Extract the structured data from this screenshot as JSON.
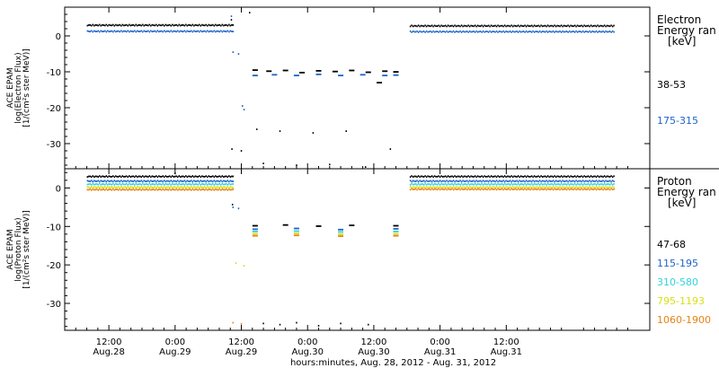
{
  "chart_data": [
    {
      "type": "scatter",
      "ylabel": [
        "ACE EPAM",
        "log(Electron Flux)",
        "[1/(cm²s ster MeV)]"
      ],
      "ylim": [
        -37,
        8
      ],
      "yticks": [
        0,
        -10,
        -20,
        -30
      ],
      "legend": {
        "title": [
          "Electron",
          "Energy ran",
          "[keV]"
        ],
        "placement": "right"
      },
      "series": [
        {
          "name": "38-53",
          "color": "#000000",
          "segments": [
            {
              "x": [
                -16,
                10.5
              ],
              "y": 3.0
            },
            {
              "x": [
                42.5,
                79.5
              ],
              "y": 2.8
            }
          ],
          "points": [
            {
              "x": 10.2,
              "y": 4.5
            },
            {
              "x": 13.5,
              "y": 6.5
            },
            {
              "x": 14.5,
              "y": -9.5
            },
            {
              "x": 17,
              "y": -9.8
            },
            {
              "x": 20,
              "y": -9.6
            },
            {
              "x": 23,
              "y": -10.2
            },
            {
              "x": 26,
              "y": -9.7
            },
            {
              "x": 29,
              "y": -9.9
            },
            {
              "x": 32,
              "y": -9.6
            },
            {
              "x": 35,
              "y": -10.1
            },
            {
              "x": 38,
              "y": -9.8
            },
            {
              "x": 40,
              "y": -10.0
            },
            {
              "x": 10.3,
              "y": -31.5
            },
            {
              "x": 12.0,
              "y": -32.0
            },
            {
              "x": 14.8,
              "y": -26.0
            },
            {
              "x": 16.0,
              "y": -35.5
            },
            {
              "x": 19.0,
              "y": -26.5
            },
            {
              "x": 22.0,
              "y": -36.0
            },
            {
              "x": 25.0,
              "y": -27.0
            },
            {
              "x": 28.0,
              "y": -35.8
            },
            {
              "x": 31.0,
              "y": -26.5
            },
            {
              "x": 34.5,
              "y": -36.5
            },
            {
              "x": 37.0,
              "y": -13.0
            },
            {
              "x": 39.0,
              "y": -31.5
            }
          ]
        },
        {
          "name": "175-315",
          "color": "#1e64c8",
          "segments": [
            {
              "x": [
                -16,
                10.5
              ],
              "y": 1.3
            },
            {
              "x": [
                42.5,
                79.5
              ],
              "y": 1.2
            }
          ],
          "points": [
            {
              "x": 10.2,
              "y": 5.5
            },
            {
              "x": 10.5,
              "y": -4.5
            },
            {
              "x": 11.5,
              "y": -5.0
            },
            {
              "x": 12.2,
              "y": -19.5
            },
            {
              "x": 12.5,
              "y": -20.5
            },
            {
              "x": 14.5,
              "y": -11.0
            },
            {
              "x": 18,
              "y": -10.8
            },
            {
              "x": 22,
              "y": -11.0
            },
            {
              "x": 26,
              "y": -10.7
            },
            {
              "x": 30,
              "y": -11.0
            },
            {
              "x": 34,
              "y": -10.8
            },
            {
              "x": 38,
              "y": -11.0
            },
            {
              "x": 40,
              "y": -10.9
            }
          ]
        }
      ]
    },
    {
      "type": "scatter",
      "ylabel": [
        "ACE EPAM",
        "log(Proton Flux)",
        "[1/(cm²s ster MeV)]"
      ],
      "ylim": [
        -37,
        5
      ],
      "yticks": [
        0,
        -10,
        -20,
        -30
      ],
      "legend": {
        "title": [
          "Proton",
          "Energy ran",
          "[keV]"
        ],
        "placement": "right"
      },
      "series": [
        {
          "name": "47-68",
          "color": "#000000",
          "segments": [
            {
              "x": [
                -16,
                10.5
              ],
              "y": 3.0
            },
            {
              "x": [
                42.5,
                79.5
              ],
              "y": 3.0
            }
          ],
          "points": [
            {
              "x": 0,
              "y": 3.8
            },
            {
              "x": 10.4,
              "y": -4.3
            },
            {
              "x": 14.5,
              "y": -9.8
            },
            {
              "x": 20,
              "y": -9.6
            },
            {
              "x": 26,
              "y": -9.9
            },
            {
              "x": 32,
              "y": -9.7
            },
            {
              "x": 40,
              "y": -9.8
            },
            {
              "x": 16,
              "y": -35.2
            },
            {
              "x": 19,
              "y": -35.5
            },
            {
              "x": 22,
              "y": -35.0
            },
            {
              "x": 26,
              "y": -35.8
            },
            {
              "x": 30,
              "y": -35.2
            },
            {
              "x": 35,
              "y": -35.5
            }
          ]
        },
        {
          "name": "115-195",
          "color": "#1e64c8",
          "segments": [
            {
              "x": [
                -16,
                10.5
              ],
              "y": 1.8
            },
            {
              "x": [
                42.5,
                79.5
              ],
              "y": 1.8
            }
          ],
          "points": [
            {
              "x": 10.5,
              "y": -5.0
            },
            {
              "x": 11.5,
              "y": -5.3
            },
            {
              "x": 14.5,
              "y": -10.7
            },
            {
              "x": 22,
              "y": -10.5
            },
            {
              "x": 30,
              "y": -10.8
            },
            {
              "x": 40,
              "y": -10.6
            }
          ]
        },
        {
          "name": "310-580",
          "color": "#32d2dc",
          "segments": [
            {
              "x": [
                -16,
                10.5
              ],
              "y": 1.0
            },
            {
              "x": [
                42.5,
                79.5
              ],
              "y": 1.0
            }
          ],
          "points": [
            {
              "x": 14.5,
              "y": -11.3
            },
            {
              "x": 22,
              "y": -11.2
            },
            {
              "x": 30,
              "y": -11.4
            },
            {
              "x": 40,
              "y": -11.3
            }
          ]
        },
        {
          "name": "795-1193",
          "color": "#dcdc14",
          "segments": [
            {
              "x": [
                -16,
                10.5
              ],
              "y": 0.2
            },
            {
              "x": [
                42.5,
                79.5
              ],
              "y": 0.2
            }
          ],
          "points": [
            {
              "x": 11.0,
              "y": -19.5
            },
            {
              "x": 12.5,
              "y": -20.2
            },
            {
              "x": 14.5,
              "y": -11.9
            },
            {
              "x": 22,
              "y": -11.8
            },
            {
              "x": 30,
              "y": -12.0
            },
            {
              "x": 40,
              "y": -11.9
            }
          ]
        },
        {
          "name": "1060-1900",
          "color": "#e68214",
          "segments": [
            {
              "x": [
                -16,
                10.5
              ],
              "y": -0.4
            },
            {
              "x": [
                42.5,
                79.5
              ],
              "y": -0.3
            }
          ],
          "points": [
            {
              "x": 10.5,
              "y": -35.0
            },
            {
              "x": 12.0,
              "y": -35.3
            },
            {
              "x": 14.5,
              "y": -12.4
            },
            {
              "x": 22,
              "y": -12.3
            },
            {
              "x": 30,
              "y": -12.5
            },
            {
              "x": 40,
              "y": -12.4
            }
          ]
        }
      ]
    }
  ],
  "xaxis": {
    "range_hours": [
      -20,
      86
    ],
    "ticks": [
      {
        "t": -12,
        "time": "12:00",
        "date": "Aug.28"
      },
      {
        "t": 0,
        "time": "0:00",
        "date": "Aug.29"
      },
      {
        "t": 12,
        "time": "12:00",
        "date": "Aug.29"
      },
      {
        "t": 24,
        "time": "0:00",
        "date": "Aug.30"
      },
      {
        "t": 36,
        "time": "12:00",
        "date": "Aug.30"
      },
      {
        "t": 48,
        "time": "0:00",
        "date": "Aug.31"
      },
      {
        "t": 60,
        "time": "12:00",
        "date": "Aug.31"
      }
    ],
    "label": "hours:minutes, Aug. 28, 2012 - Aug. 31, 2012"
  }
}
